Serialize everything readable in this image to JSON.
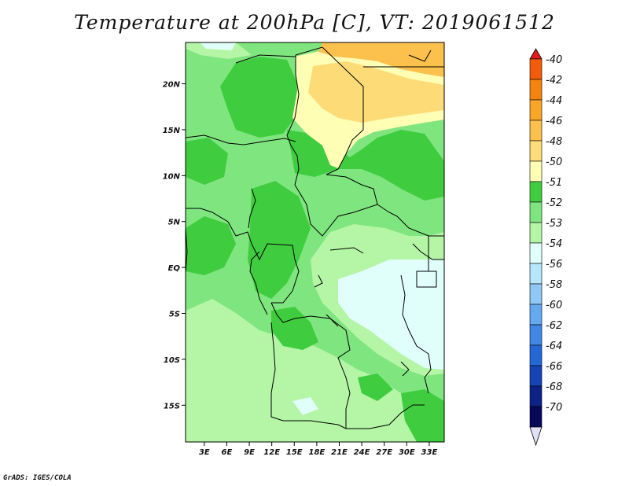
{
  "title": "Temperature at 200hPa [C], VT: 2019061512",
  "footer": "GrADS: IGES/COLA",
  "map": {
    "lat_range": [
      -19,
      24.5
    ],
    "lon_range": [
      0.5,
      35
    ],
    "lat_ticks": [
      {
        "value": 20,
        "label": "20N"
      },
      {
        "value": 15,
        "label": "15N"
      },
      {
        "value": 10,
        "label": "10N"
      },
      {
        "value": 5,
        "label": "5N"
      },
      {
        "value": 0,
        "label": "EQ"
      },
      {
        "value": -5,
        "label": "5S"
      },
      {
        "value": -10,
        "label": "10S"
      },
      {
        "value": -15,
        "label": "15S"
      }
    ],
    "lon_ticks": [
      {
        "value": 3,
        "label": "3E"
      },
      {
        "value": 6,
        "label": "6E"
      },
      {
        "value": 9,
        "label": "9E"
      },
      {
        "value": 12,
        "label": "12E"
      },
      {
        "value": 15,
        "label": "15E"
      },
      {
        "value": 18,
        "label": "18E"
      },
      {
        "value": 21,
        "label": "21E"
      },
      {
        "value": 24,
        "label": "24E"
      },
      {
        "value": 27,
        "label": "27E"
      },
      {
        "value": 30,
        "label": "30E"
      },
      {
        "value": 33,
        "label": "33E"
      }
    ]
  },
  "colorbar": {
    "labels": [
      "-40",
      "-42",
      "-44",
      "-46",
      "-48",
      "-50",
      "-51",
      "-52",
      "-53",
      "-54",
      "-56",
      "-58",
      "-60",
      "-62",
      "-64",
      "-66",
      "-68",
      "-70"
    ],
    "colors": [
      "#e31a1c",
      "#f25b0a",
      "#f7830f",
      "#f9a526",
      "#fcc14c",
      "#fddc78",
      "#fefeb5",
      "#3fcd3f",
      "#7fe57f",
      "#b4f5a6",
      "#e0fffb",
      "#b6e6fb",
      "#8fc8f4",
      "#65aaf0",
      "#4087e6",
      "#2468d8",
      "#1544b7",
      "#0c2286",
      "#06085a",
      "#e0e0f6"
    ]
  },
  "regions": {
    "background": "#7fe57f",
    "levels": [
      {
        "label": "-48",
        "color": "#fcc14c"
      },
      {
        "label": "-50",
        "color": "#fddc78"
      },
      {
        "label": "-51",
        "color": "#fefeb5"
      },
      {
        "label": "-52",
        "color": "#3fcd3f"
      },
      {
        "label": "-53",
        "color": "#7fe57f"
      },
      {
        "label": "-54",
        "color": "#b4f5a6"
      },
      {
        "label": "-56",
        "color": "#e0fffb"
      }
    ]
  }
}
